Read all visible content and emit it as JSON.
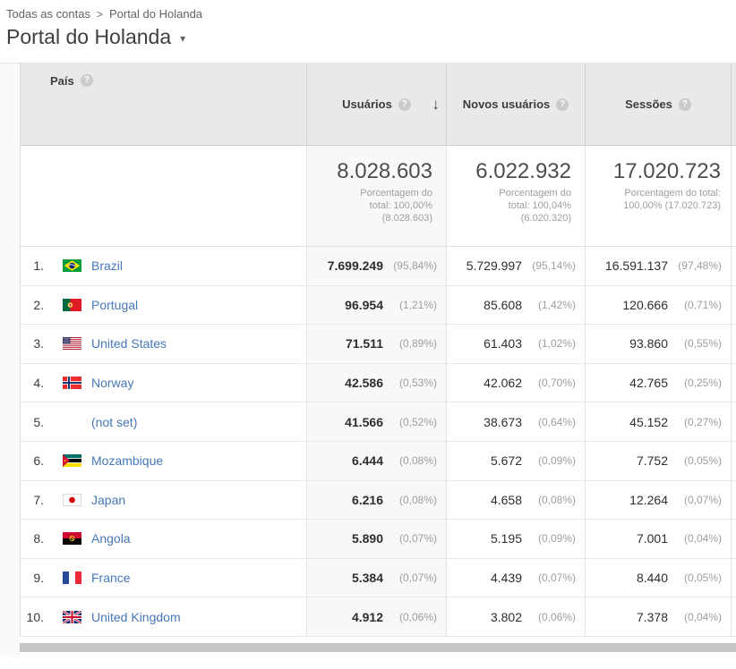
{
  "breadcrumb": {
    "root": "Todas as contas",
    "current": "Portal do Holanda"
  },
  "title": "Portal do Holanda",
  "icons": {
    "help": "?",
    "sort_descending": "↓",
    "property_caret": "▾",
    "breadcrumb_separator": ">"
  },
  "colors": {
    "link_blue": "#4677b8",
    "header_bg": "#e9e9e9",
    "sorted_column_bg": "#f8f8f8",
    "percent_gray": "#9e9e9e",
    "scrollbar_thumb": "#c6c6c6"
  },
  "table": {
    "dimension": {
      "label": "País"
    },
    "metrics": [
      {
        "label": "Usuários",
        "sorted": "descending"
      },
      {
        "label": "Novos usuários"
      },
      {
        "label": "Sessões"
      }
    ],
    "totals": [
      {
        "value": "8.028.603",
        "subtitle": "Porcentagem do total: 100,00% (8.028.603)"
      },
      {
        "value": "6.022.932",
        "subtitle": "Porcentagem do total: 100,04% (6.020.320)"
      },
      {
        "value": "17.020.723",
        "subtitle": "Porcentagem do total: 100,00% (17.020.723)"
      }
    ],
    "rows": [
      {
        "rank": "1.",
        "country": "Brazil",
        "flag": "br",
        "users": "7.699.249",
        "users_pct": "(95,84%)",
        "new_users": "5.729.997",
        "new_users_pct": "(95,14%)",
        "sessions": "16.591.137",
        "sessions_pct": "(97,48%)"
      },
      {
        "rank": "2.",
        "country": "Portugal",
        "flag": "pt",
        "users": "96.954",
        "users_pct": "(1,21%)",
        "new_users": "85.608",
        "new_users_pct": "(1,42%)",
        "sessions": "120.666",
        "sessions_pct": "(0,71%)"
      },
      {
        "rank": "3.",
        "country": "United States",
        "flag": "us",
        "users": "71.511",
        "users_pct": "(0,89%)",
        "new_users": "61.403",
        "new_users_pct": "(1,02%)",
        "sessions": "93.860",
        "sessions_pct": "(0,55%)"
      },
      {
        "rank": "4.",
        "country": "Norway",
        "flag": "no",
        "users": "42.586",
        "users_pct": "(0,53%)",
        "new_users": "42.062",
        "new_users_pct": "(0,70%)",
        "sessions": "42.765",
        "sessions_pct": "(0,25%)"
      },
      {
        "rank": "5.",
        "country": "(not set)",
        "flag": null,
        "users": "41.566",
        "users_pct": "(0,52%)",
        "new_users": "38.673",
        "new_users_pct": "(0,64%)",
        "sessions": "45.152",
        "sessions_pct": "(0,27%)"
      },
      {
        "rank": "6.",
        "country": "Mozambique",
        "flag": "mz",
        "users": "6.444",
        "users_pct": "(0,08%)",
        "new_users": "5.672",
        "new_users_pct": "(0,09%)",
        "sessions": "7.752",
        "sessions_pct": "(0,05%)"
      },
      {
        "rank": "7.",
        "country": "Japan",
        "flag": "jp",
        "users": "6.216",
        "users_pct": "(0,08%)",
        "new_users": "4.658",
        "new_users_pct": "(0,08%)",
        "sessions": "12.264",
        "sessions_pct": "(0,07%)"
      },
      {
        "rank": "8.",
        "country": "Angola",
        "flag": "ao",
        "users": "5.890",
        "users_pct": "(0,07%)",
        "new_users": "5.195",
        "new_users_pct": "(0,09%)",
        "sessions": "7.001",
        "sessions_pct": "(0,04%)"
      },
      {
        "rank": "9.",
        "country": "France",
        "flag": "fr",
        "users": "5.384",
        "users_pct": "(0,07%)",
        "new_users": "4.439",
        "new_users_pct": "(0,07%)",
        "sessions": "8.440",
        "sessions_pct": "(0,05%)"
      },
      {
        "rank": "10.",
        "country": "United Kingdom",
        "flag": "gb",
        "users": "4.912",
        "users_pct": "(0,06%)",
        "new_users": "3.802",
        "new_users_pct": "(0,06%)",
        "sessions": "7.378",
        "sessions_pct": "(0,04%)"
      }
    ]
  }
}
